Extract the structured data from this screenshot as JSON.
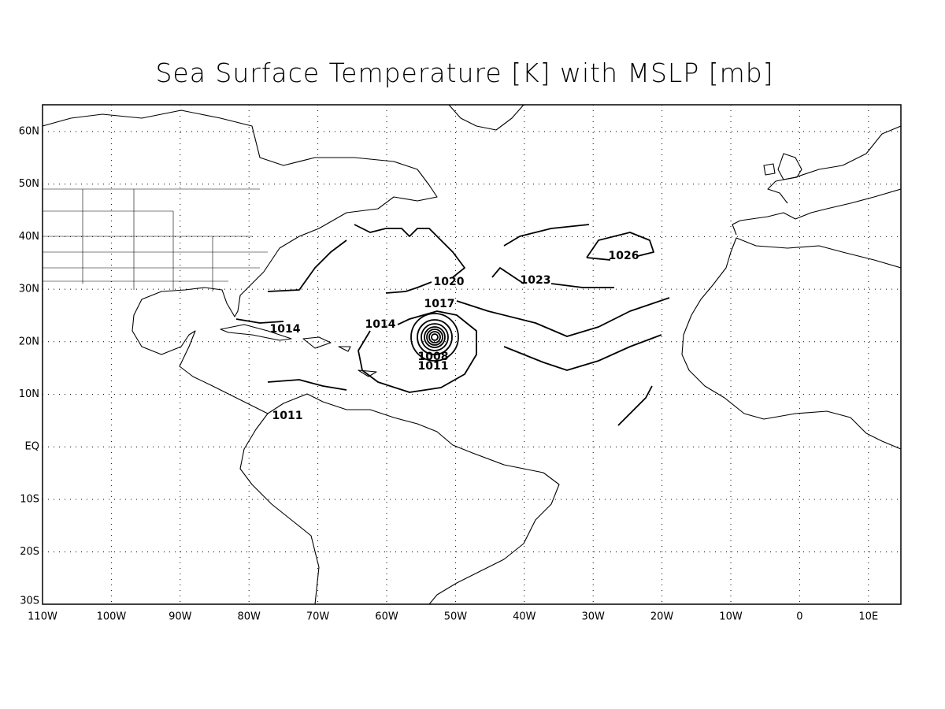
{
  "title": "Sea Surface Temperature [K] with MSLP [mb]",
  "lat_labels": [
    "60N",
    "50N",
    "40N",
    "30N",
    "20N",
    "10N",
    "EQ",
    "10S",
    "20S",
    "30S"
  ],
  "lon_labels": [
    "110W",
    "100W",
    "90W",
    "80W",
    "70W",
    "60W",
    "50W",
    "40W",
    "30W",
    "20W",
    "10W",
    "0",
    "10E"
  ],
  "contour_labels": [
    "1026",
    "1023",
    "1020",
    "1017",
    "1014",
    "1014",
    "1008",
    "1011",
    "1011"
  ]
}
